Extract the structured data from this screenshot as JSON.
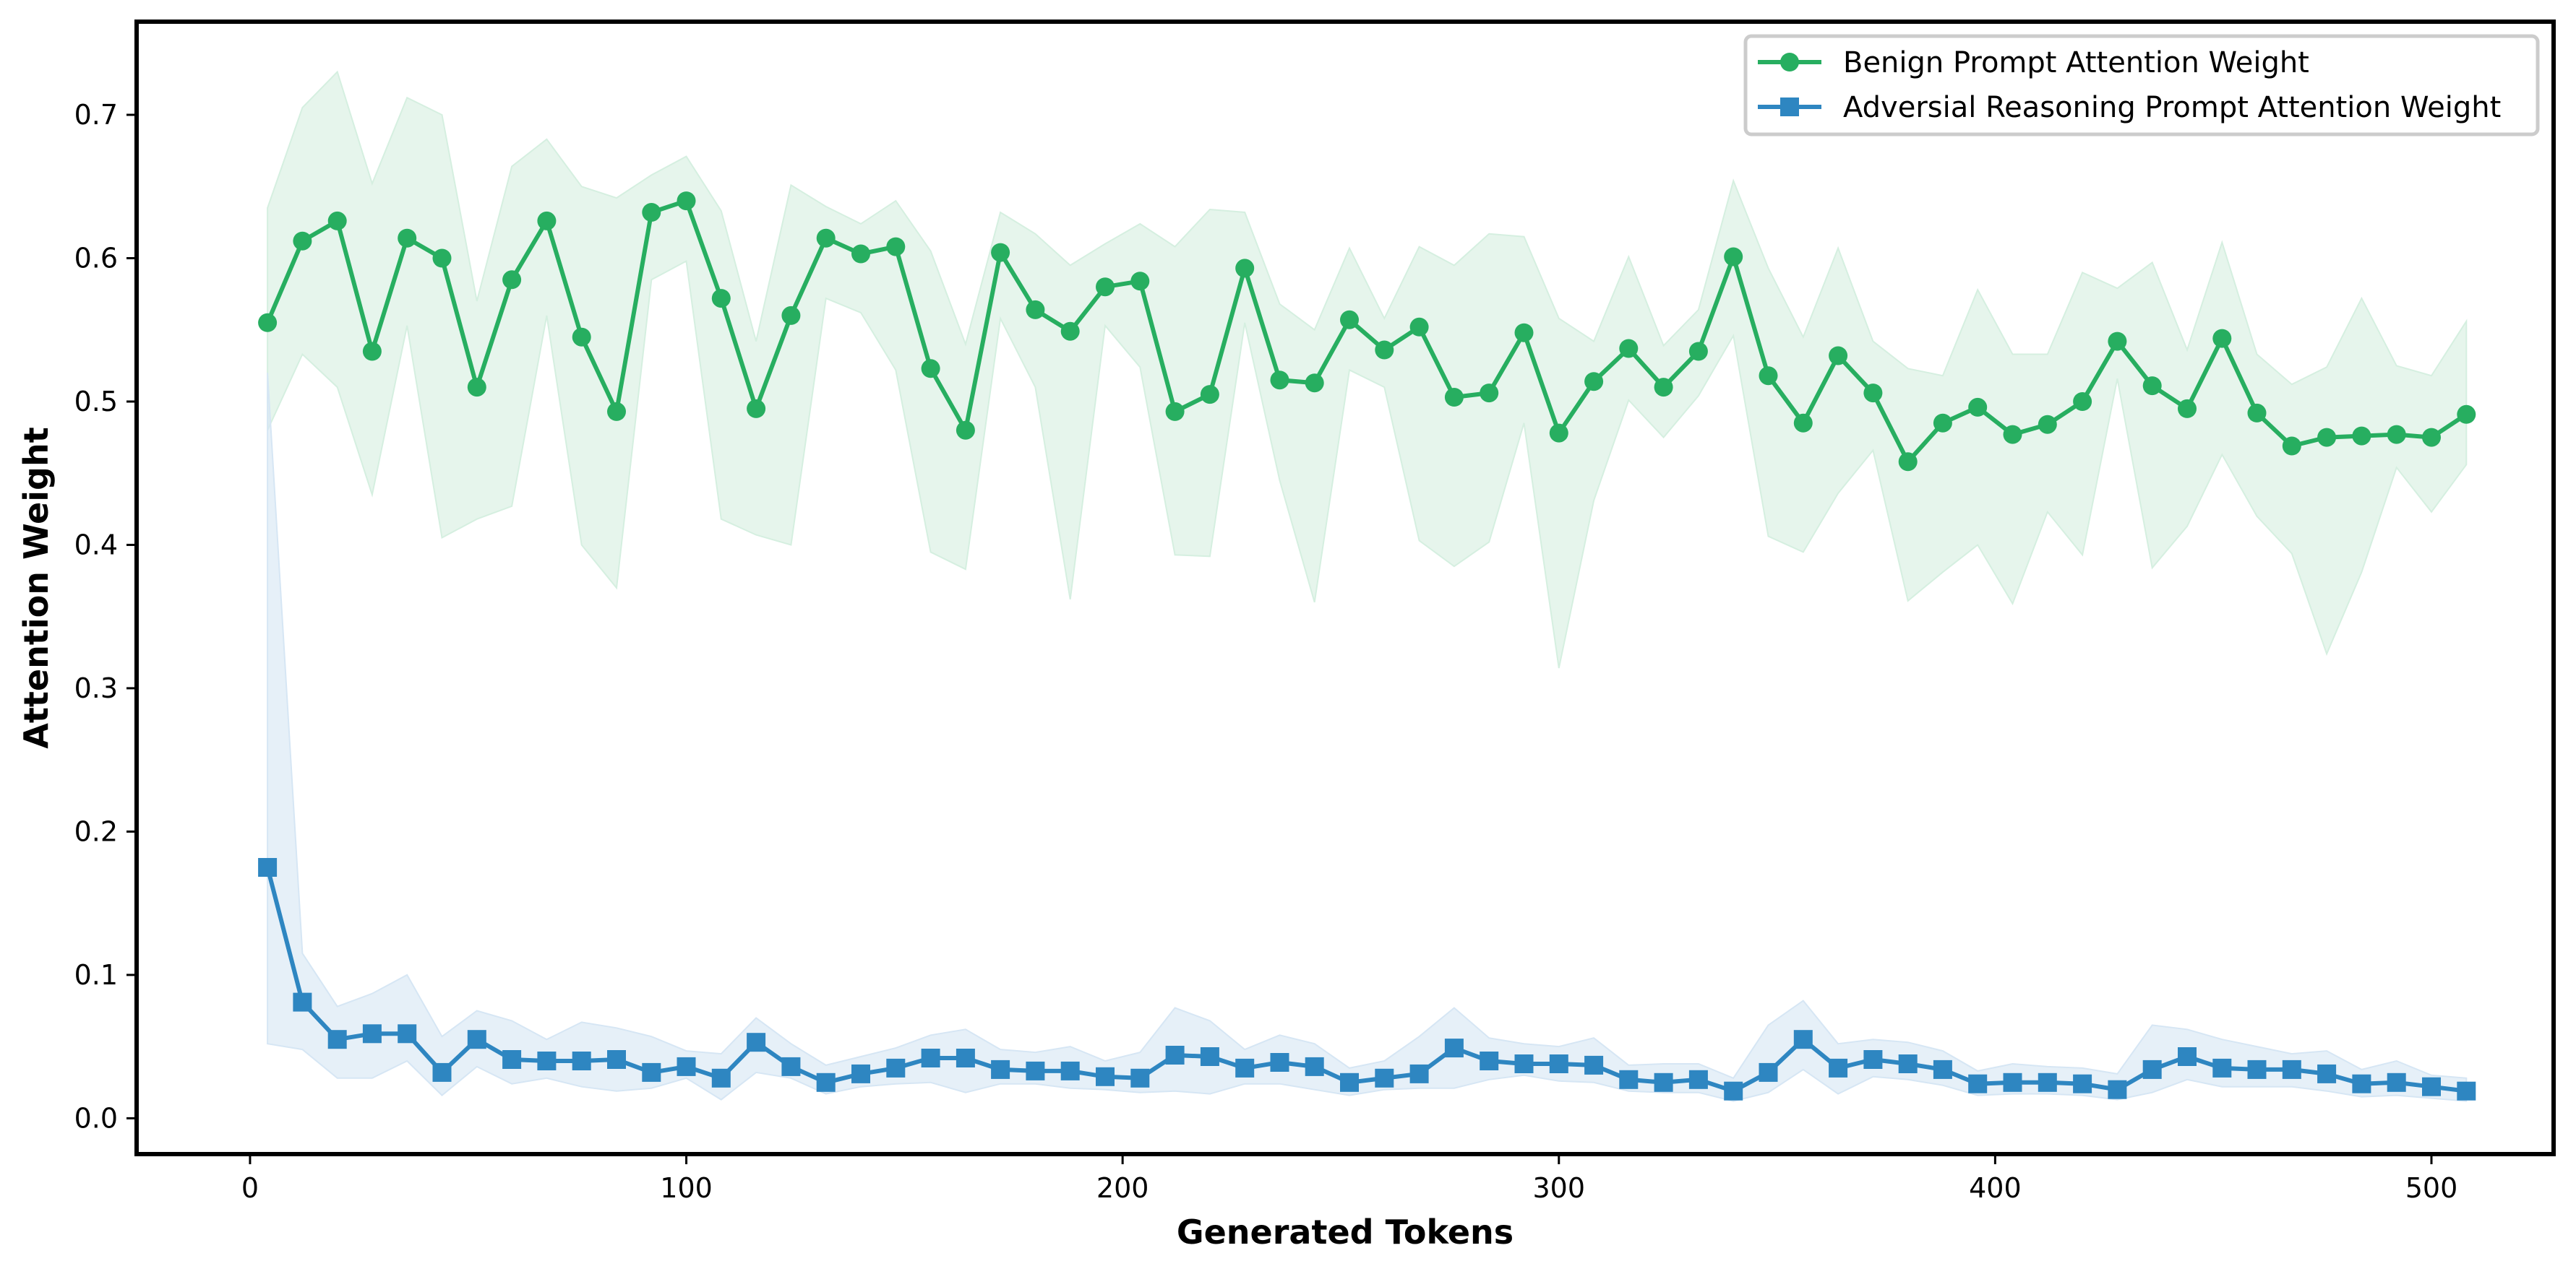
{
  "chart_data": {
    "type": "line",
    "xlabel": "Generated Tokens",
    "ylabel": "Attention Weight",
    "xlim": [
      -26,
      528
    ],
    "ylim": [
      -0.025,
      0.765
    ],
    "xticks": [
      0,
      100,
      200,
      300,
      400,
      500
    ],
    "yticks": [
      0.0,
      0.1,
      0.2,
      0.3,
      0.4,
      0.5,
      0.6,
      0.7
    ],
    "xtick_labels": [
      "0",
      "100",
      "200",
      "300",
      "400",
      "500"
    ],
    "ytick_labels": [
      "0.0",
      "0.1",
      "0.2",
      "0.3",
      "0.4",
      "0.5",
      "0.6",
      "0.7"
    ],
    "grid": false,
    "legend_position": "top-right",
    "x": [
      4,
      12,
      20,
      28,
      36,
      44,
      52,
      60,
      68,
      76,
      84,
      92,
      100,
      108,
      116,
      124,
      132,
      140,
      148,
      156,
      164,
      172,
      180,
      188,
      196,
      204,
      212,
      220,
      228,
      236,
      244,
      252,
      260,
      268,
      276,
      284,
      292,
      300,
      308,
      316,
      324,
      332,
      340,
      348,
      356,
      364,
      372,
      380,
      388,
      396,
      404,
      412,
      420,
      428,
      436,
      444,
      452,
      460,
      468,
      476,
      484,
      492,
      500,
      508
    ],
    "series": [
      {
        "name": "Benign Prompt Attention Weight",
        "color": "#27ae60",
        "band_color": "#d5efe0",
        "marker": "circle",
        "values": [
          0.555,
          0.612,
          0.626,
          0.535,
          0.614,
          0.6,
          0.51,
          0.585,
          0.626,
          0.545,
          0.493,
          0.632,
          0.64,
          0.572,
          0.495,
          0.56,
          0.614,
          0.603,
          0.608,
          0.523,
          0.48,
          0.604,
          0.564,
          0.549,
          0.58,
          0.584,
          0.493,
          0.505,
          0.593,
          0.515,
          0.513,
          0.557,
          0.536,
          0.552,
          0.503,
          0.506,
          0.548,
          0.478,
          0.514,
          0.537,
          0.51,
          0.535,
          0.601,
          0.518,
          0.485,
          0.532,
          0.506,
          0.458,
          0.485,
          0.496,
          0.477,
          0.484,
          0.5,
          0.542,
          0.511,
          0.495,
          0.544,
          0.492,
          0.469,
          0.475,
          0.476,
          0.477,
          0.475,
          0.491
        ],
        "lower": [
          0.48,
          0.533,
          0.51,
          0.435,
          0.553,
          0.405,
          0.418,
          0.427,
          0.56,
          0.4,
          0.37,
          0.585,
          0.598,
          0.418,
          0.407,
          0.4,
          0.572,
          0.562,
          0.522,
          0.395,
          0.383,
          0.558,
          0.51,
          0.362,
          0.553,
          0.524,
          0.393,
          0.392,
          0.555,
          0.445,
          0.36,
          0.522,
          0.51,
          0.403,
          0.385,
          0.402,
          0.485,
          0.314,
          0.431,
          0.501,
          0.475,
          0.504,
          0.546,
          0.406,
          0.395,
          0.436,
          0.466,
          0.361,
          0.381,
          0.4,
          0.359,
          0.423,
          0.393,
          0.516,
          0.384,
          0.413,
          0.463,
          0.42,
          0.394,
          0.324,
          0.381,
          0.454,
          0.423,
          0.456
        ],
        "upper": [
          0.635,
          0.705,
          0.73,
          0.652,
          0.712,
          0.7,
          0.57,
          0.664,
          0.683,
          0.65,
          0.642,
          0.658,
          0.671,
          0.633,
          0.542,
          0.651,
          0.636,
          0.624,
          0.64,
          0.605,
          0.54,
          0.632,
          0.617,
          0.595,
          0.61,
          0.624,
          0.608,
          0.634,
          0.632,
          0.568,
          0.55,
          0.607,
          0.558,
          0.608,
          0.595,
          0.617,
          0.615,
          0.558,
          0.542,
          0.601,
          0.539,
          0.564,
          0.654,
          0.593,
          0.545,
          0.607,
          0.542,
          0.523,
          0.518,
          0.578,
          0.533,
          0.533,
          0.59,
          0.579,
          0.597,
          0.536,
          0.611,
          0.533,
          0.512,
          0.524,
          0.572,
          0.525,
          0.518,
          0.556
        ]
      },
      {
        "name": "Adversial Reasoning Prompt Attention Weight",
        "color": "#2e86c1",
        "band_color": "#d6e6f4",
        "marker": "square",
        "values": [
          0.175,
          0.081,
          0.055,
          0.059,
          0.059,
          0.032,
          0.055,
          0.041,
          0.04,
          0.04,
          0.041,
          0.032,
          0.036,
          0.028,
          0.053,
          0.036,
          0.025,
          0.031,
          0.035,
          0.042,
          0.042,
          0.034,
          0.033,
          0.033,
          0.029,
          0.028,
          0.044,
          0.043,
          0.035,
          0.039,
          0.036,
          0.025,
          0.028,
          0.031,
          0.049,
          0.04,
          0.038,
          0.038,
          0.037,
          0.027,
          0.025,
          0.027,
          0.019,
          0.032,
          0.055,
          0.035,
          0.041,
          0.038,
          0.034,
          0.024,
          0.025,
          0.025,
          0.024,
          0.02,
          0.034,
          0.043,
          0.035,
          0.034,
          0.034,
          0.031,
          0.024,
          0.025,
          0.022,
          0.019
        ],
        "lower": [
          0.052,
          0.048,
          0.028,
          0.028,
          0.04,
          0.016,
          0.036,
          0.024,
          0.028,
          0.022,
          0.019,
          0.021,
          0.028,
          0.013,
          0.032,
          0.028,
          0.017,
          0.022,
          0.024,
          0.025,
          0.018,
          0.024,
          0.024,
          0.021,
          0.02,
          0.018,
          0.019,
          0.017,
          0.024,
          0.024,
          0.02,
          0.016,
          0.02,
          0.021,
          0.021,
          0.027,
          0.03,
          0.026,
          0.025,
          0.019,
          0.018,
          0.018,
          0.012,
          0.018,
          0.034,
          0.017,
          0.029,
          0.027,
          0.023,
          0.016,
          0.017,
          0.017,
          0.016,
          0.013,
          0.018,
          0.027,
          0.022,
          0.022,
          0.022,
          0.019,
          0.015,
          0.016,
          0.014,
          0.012
        ],
        "upper": [
          0.52,
          0.115,
          0.078,
          0.087,
          0.1,
          0.057,
          0.075,
          0.068,
          0.055,
          0.067,
          0.063,
          0.057,
          0.047,
          0.045,
          0.07,
          0.052,
          0.037,
          0.043,
          0.049,
          0.058,
          0.062,
          0.048,
          0.046,
          0.05,
          0.04,
          0.046,
          0.077,
          0.068,
          0.048,
          0.058,
          0.052,
          0.035,
          0.04,
          0.057,
          0.077,
          0.056,
          0.052,
          0.05,
          0.056,
          0.037,
          0.038,
          0.038,
          0.028,
          0.065,
          0.082,
          0.052,
          0.055,
          0.053,
          0.047,
          0.033,
          0.038,
          0.036,
          0.035,
          0.031,
          0.065,
          0.062,
          0.055,
          0.05,
          0.045,
          0.047,
          0.034,
          0.04,
          0.03,
          0.028
        ]
      }
    ]
  }
}
